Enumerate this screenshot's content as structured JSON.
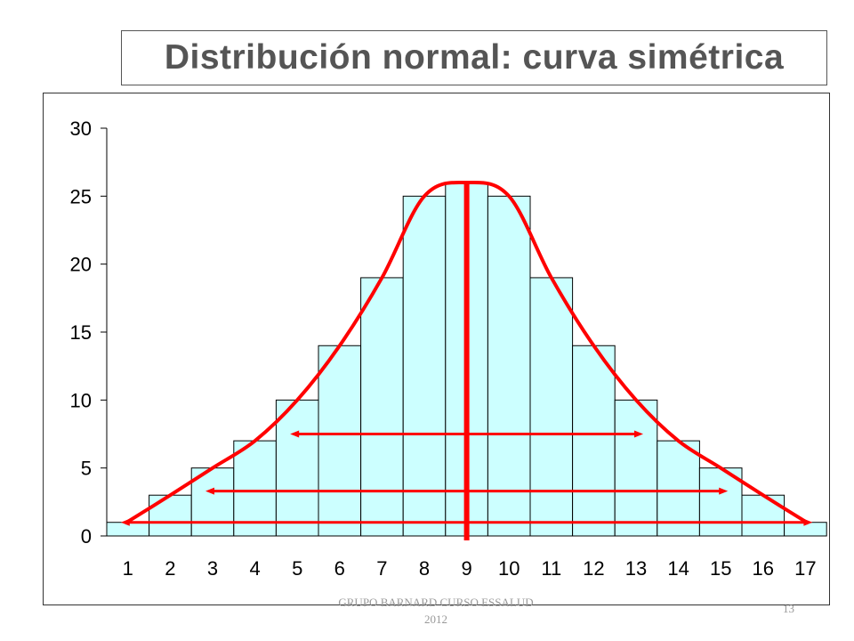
{
  "title": "Distribución normal: curva simétrica",
  "footer": {
    "line1": "GRUPO BARNARD CURSO ESSALUD",
    "line2": "2012",
    "page_number": "13"
  },
  "colors": {
    "bar_fill": "#ccffff",
    "bar_stroke": "#000000",
    "curve": "#ff0000"
  },
  "chart_data": {
    "type": "bar",
    "categories": [
      "1",
      "2",
      "3",
      "4",
      "5",
      "6",
      "7",
      "8",
      "9",
      "10",
      "11",
      "12",
      "13",
      "14",
      "15",
      "16",
      "17"
    ],
    "values": [
      1,
      3,
      5,
      7,
      10,
      14,
      19,
      25,
      26,
      25,
      19,
      14,
      10,
      7,
      5,
      3,
      1
    ],
    "ylim": [
      0,
      30
    ],
    "yticks": [
      "0",
      "5",
      "10",
      "15",
      "20",
      "25",
      "30"
    ],
    "ytick_values": [
      0,
      5,
      10,
      15,
      20,
      25,
      30
    ],
    "grid": false,
    "overlay": {
      "curve": "symmetric bell curve traced over bar tops",
      "center_line_at_category": "9",
      "double_arrows": [
        {
          "from_category": "1",
          "to_category": "17",
          "y": 1
        },
        {
          "from_category": "3",
          "to_category": "15",
          "y": 3.3
        },
        {
          "from_category": "5",
          "to_category": "13",
          "y": 7.5
        }
      ]
    }
  }
}
